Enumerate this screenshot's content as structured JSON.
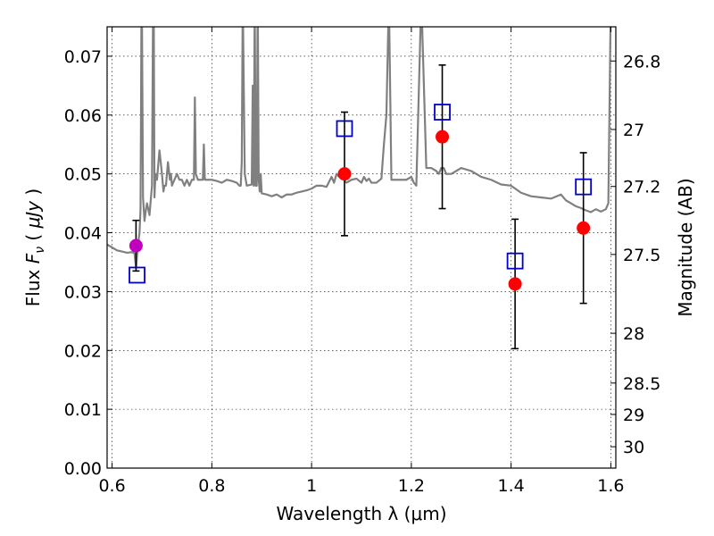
{
  "chart_data": {
    "type": "scatter",
    "xlabel": "Wavelength  λ (μm)",
    "ylabel": "Flux  Fν  ( μJy )",
    "ylabel_parts": {
      "prefix": "Flux  ",
      "var": "F",
      "sub": "ν",
      "mid": "  ( ",
      "unit": "μJy",
      "suffix": " )"
    },
    "y2label": "Magnitude (AB)",
    "xlim": [
      0.59,
      1.61
    ],
    "ylim": [
      0.0,
      0.075
    ],
    "grid": true,
    "x_ticks": [
      0.6,
      0.8,
      1.0,
      1.2,
      1.4,
      1.6
    ],
    "x_tick_labels": [
      "0.6",
      "0.8",
      "1",
      "1.2",
      "1.4",
      "1.6"
    ],
    "y_ticks": [
      0.0,
      0.01,
      0.02,
      0.03,
      0.04,
      0.05,
      0.06,
      0.07
    ],
    "y_tick_labels": [
      "0.00",
      "0.01",
      "0.02",
      "0.03",
      "0.04",
      "0.05",
      "0.06",
      "0.07"
    ],
    "y2_ticks": [
      26.8,
      27.0,
      27.2,
      27.5,
      28.0,
      28.5,
      29.0,
      30.0
    ],
    "y2_tick_labels": [
      "26.8",
      "27",
      "27.2",
      "27.5",
      "28",
      "28.5",
      "29",
      "30"
    ],
    "colors": {
      "spectrum": "#808080",
      "measured": "#ff0000",
      "measured_special": "#bf00bf",
      "model": "#0000cc",
      "errorbar": "#000000"
    },
    "spectrum": {
      "x": [
        0.59,
        0.6,
        0.61,
        0.62,
        0.63,
        0.64,
        0.645,
        0.648,
        0.65,
        0.652,
        0.655,
        0.657,
        0.658,
        0.659,
        0.66,
        0.662,
        0.665,
        0.668,
        0.67,
        0.675,
        0.68,
        0.683,
        0.685,
        0.687,
        0.69,
        0.695,
        0.7,
        0.703,
        0.705,
        0.708,
        0.712,
        0.716,
        0.718,
        0.72,
        0.725,
        0.73,
        0.735,
        0.74,
        0.745,
        0.75,
        0.755,
        0.76,
        0.764,
        0.766,
        0.768,
        0.772,
        0.778,
        0.782,
        0.784,
        0.786,
        0.79,
        0.795,
        0.8,
        0.81,
        0.82,
        0.83,
        0.84,
        0.85,
        0.855,
        0.858,
        0.86,
        0.862,
        0.866,
        0.87,
        0.875,
        0.88,
        0.882,
        0.884,
        0.886,
        0.888,
        0.89,
        0.892,
        0.894,
        0.896,
        0.898,
        0.9,
        0.91,
        0.92,
        0.93,
        0.94,
        0.95,
        0.96,
        0.97,
        0.98,
        0.99,
        1.0,
        1.01,
        1.02,
        1.03,
        1.04,
        1.045,
        1.05,
        1.055,
        1.06,
        1.07,
        1.08,
        1.09,
        1.1,
        1.105,
        1.11,
        1.115,
        1.12,
        1.13,
        1.14,
        1.145,
        1.15,
        1.155,
        1.16,
        1.17,
        1.18,
        1.19,
        1.2,
        1.205,
        1.21,
        1.22,
        1.23,
        1.24,
        1.25,
        1.255,
        1.26,
        1.265,
        1.27,
        1.28,
        1.29,
        1.3,
        1.32,
        1.34,
        1.36,
        1.38,
        1.4,
        1.42,
        1.44,
        1.46,
        1.48,
        1.5,
        1.51,
        1.52,
        1.53,
        1.54,
        1.55,
        1.56,
        1.57,
        1.58,
        1.59,
        1.595,
        1.6,
        1.605,
        1.61
      ],
      "y": [
        0.038,
        0.0375,
        0.037,
        0.0368,
        0.0366,
        0.0367,
        0.0365,
        0.034,
        0.036,
        0.038,
        0.04,
        0.044,
        0.06,
        0.08,
        0.075,
        0.046,
        0.042,
        0.044,
        0.045,
        0.043,
        0.048,
        0.09,
        0.046,
        0.05,
        0.049,
        0.054,
        0.05,
        0.047,
        0.048,
        0.048,
        0.052,
        0.049,
        0.05,
        0.048,
        0.049,
        0.05,
        0.049,
        0.049,
        0.048,
        0.049,
        0.048,
        0.049,
        0.049,
        0.063,
        0.05,
        0.049,
        0.049,
        0.049,
        0.055,
        0.049,
        0.049,
        0.049,
        0.049,
        0.0488,
        0.0485,
        0.049,
        0.0488,
        0.0485,
        0.048,
        0.048,
        0.052,
        0.08,
        0.05,
        0.048,
        0.0481,
        0.0482,
        0.065,
        0.048,
        0.08,
        0.048,
        0.048,
        0.08,
        0.049,
        0.047,
        0.05,
        0.0467,
        0.0465,
        0.0462,
        0.0465,
        0.046,
        0.0465,
        0.0465,
        0.0468,
        0.047,
        0.0472,
        0.0475,
        0.048,
        0.048,
        0.0478,
        0.0495,
        0.0485,
        0.05,
        0.0495,
        0.0495,
        0.0485,
        0.049,
        0.0492,
        0.0485,
        0.0495,
        0.0488,
        0.0492,
        0.0485,
        0.0485,
        0.0492,
        0.055,
        0.06,
        0.08,
        0.049,
        0.049,
        0.049,
        0.049,
        0.0495,
        0.0485,
        0.048,
        0.08,
        0.051,
        0.051,
        0.0505,
        0.05,
        0.051,
        0.051,
        0.05,
        0.05,
        0.0505,
        0.051,
        0.0505,
        0.0495,
        0.049,
        0.0482,
        0.048,
        0.0468,
        0.0462,
        0.046,
        0.0458,
        0.0465,
        0.0455,
        0.045,
        0.0445,
        0.0442,
        0.0438,
        0.0435,
        0.044,
        0.0436,
        0.044,
        0.045,
        0.08,
        0.08,
        0.08
      ]
    },
    "series": [
      {
        "name": "",
        "marker": "circle",
        "color": "#ff0000",
        "points": [
          {
            "x": 0.648,
            "y": 0.0378,
            "err": 0.0043,
            "color": "#bf00bf"
          },
          {
            "x": 1.066,
            "y": 0.05,
            "err": 0.0105
          },
          {
            "x": 1.262,
            "y": 0.0563,
            "err": 0.0122
          },
          {
            "x": 1.408,
            "y": 0.0313,
            "err": 0.011
          },
          {
            "x": 1.545,
            "y": 0.0408,
            "err": 0.0128
          }
        ]
      },
      {
        "name": "",
        "marker": "square",
        "color": "#0000cc",
        "points": [
          {
            "x": 0.65,
            "y": 0.0328
          },
          {
            "x": 1.066,
            "y": 0.0577
          },
          {
            "x": 1.262,
            "y": 0.0605
          },
          {
            "x": 1.408,
            "y": 0.0352
          },
          {
            "x": 1.545,
            "y": 0.0478
          }
        ]
      }
    ]
  }
}
